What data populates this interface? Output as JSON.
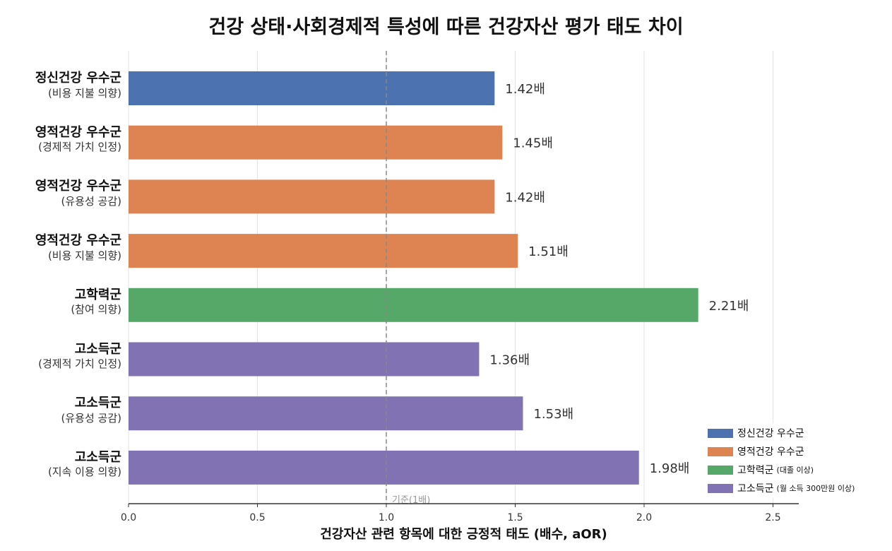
{
  "chart_data": {
    "type": "bar",
    "orientation": "horizontal",
    "title": "건강 상태·사회경제적 특성에 따른 건강자산 평가 태도 차이",
    "xlabel": "건강자산 관련 항목에 대한 긍정적 태도 (배수, aOR)",
    "xlim": [
      0,
      2.6
    ],
    "xticks": [
      "0.0",
      "0.5",
      "1.0",
      "1.5",
      "2.0",
      "2.5"
    ],
    "grid": true,
    "reference_line": {
      "value": 1.0,
      "label": "기준(1배)"
    },
    "value_suffix": "배",
    "legend_position": "bottom-right",
    "categories": [
      {
        "main": "정신건강 우수군",
        "sub": "(비용 지불 의향)",
        "group": 0,
        "value": 1.42,
        "label": "1.42배"
      },
      {
        "main": "영적건강 우수군",
        "sub": "(경제적 가치 인정)",
        "group": 1,
        "value": 1.45,
        "label": "1.45배"
      },
      {
        "main": "영적건강 우수군",
        "sub": "(유용성 공감)",
        "group": 1,
        "value": 1.42,
        "label": "1.42배"
      },
      {
        "main": "영적건강 우수군",
        "sub": "(비용 지불 의향)",
        "group": 1,
        "value": 1.51,
        "label": "1.51배"
      },
      {
        "main": "고학력군",
        "sub": "(참여 의향)",
        "group": 2,
        "value": 2.21,
        "label": "2.21배"
      },
      {
        "main": "고소득군",
        "sub": "(경제적 가치 인정)",
        "group": 3,
        "value": 1.36,
        "label": "1.36배"
      },
      {
        "main": "고소득군",
        "sub": "(유용성 공감)",
        "group": 3,
        "value": 1.53,
        "label": "1.53배"
      },
      {
        "main": "고소득군",
        "sub": "(지속 이용 의향)",
        "group": 3,
        "value": 1.98,
        "label": "1.98배"
      }
    ],
    "legend": [
      {
        "name": "정신건강 우수군",
        "note": "",
        "color": "#4c72b0"
      },
      {
        "name": "영적건강 우수군",
        "note": "",
        "color": "#dd8452"
      },
      {
        "name": "고학력군",
        "note": "(대졸 이상)",
        "color": "#55a868"
      },
      {
        "name": "고소득군",
        "note": "(월 소득 300만원 이상)",
        "color": "#8172b3"
      }
    ]
  }
}
